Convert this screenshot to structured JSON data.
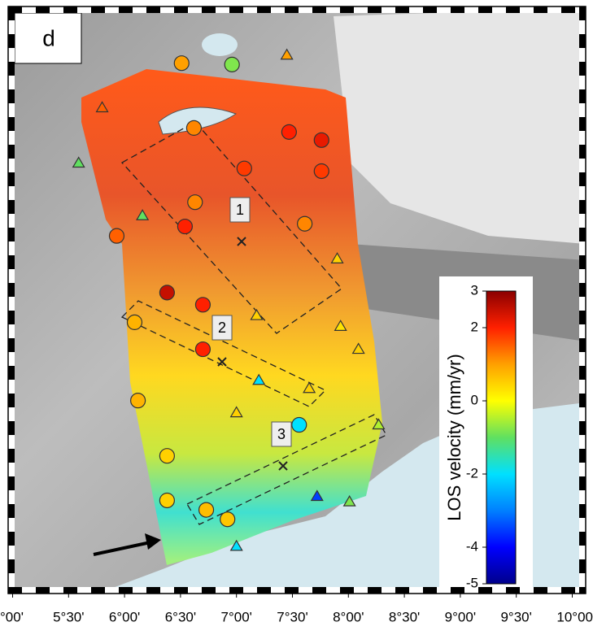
{
  "panel_label": "d",
  "profile_labels": [
    "1",
    "2",
    "3"
  ],
  "map": {
    "xlim": [
      4.96,
      10.12
    ],
    "ylim": [
      42.8,
      47.15
    ],
    "xticks": [
      {
        "value": 5,
        "label": "°00'"
      },
      {
        "value": 5.5,
        "label": "5°30'"
      },
      {
        "value": 6,
        "label": "6°00'"
      },
      {
        "value": 6.5,
        "label": "6°30'"
      },
      {
        "value": 7,
        "label": "7°00'"
      },
      {
        "value": 7.5,
        "label": "7°30'"
      },
      {
        "value": 8,
        "label": "8°00'"
      },
      {
        "value": 8.5,
        "label": "8°30'"
      },
      {
        "value": 9,
        "label": "9°00'"
      },
      {
        "value": 9.5,
        "label": "9°30'"
      },
      {
        "value": 10,
        "label": "10°00"
      }
    ]
  },
  "stations": {
    "lon": [
      6.51,
      6.96,
      7.45,
      5.8,
      6.62,
      7.47,
      7.76,
      7.07,
      7.76,
      6.63,
      6.54,
      7.61,
      6.16,
      5.59,
      5.93,
      6.38,
      6.7,
      7.18,
      7.93,
      6.09,
      6.7,
      7.2,
      7.65,
      6.12,
      7.56,
      8.27,
      6.38,
      6.38,
      6.92,
      7.72,
      8.01,
      7.0,
      8.09,
      7.9,
      7.0,
      6.73
    ],
    "lat": [
      46.73,
      46.72,
      46.79,
      46.4,
      46.25,
      46.22,
      46.16,
      45.95,
      45.93,
      45.7,
      45.52,
      45.54,
      45.6,
      45.99,
      45.45,
      45.03,
      44.94,
      44.86,
      44.78,
      44.81,
      44.61,
      44.38,
      44.32,
      44.23,
      44.05,
      44.05,
      43.82,
      43.49,
      43.35,
      43.52,
      43.48,
      43.15,
      44.61,
      45.28,
      44.14,
      43.42
    ],
    "values": [
      1.0,
      -0.8,
      1.0,
      1.5,
      1.2,
      2.0,
      2.2,
      1.8,
      1.8,
      1.2,
      2.0,
      1.2,
      -1.0,
      -1.0,
      1.5,
      2.5,
      2.0,
      0.5,
      0.3,
      0.8,
      2.0,
      -2.0,
      0.5,
      0.8,
      -2.0,
      -0.5,
      0.5,
      0.5,
      0.6,
      -3.5,
      -0.8,
      -2.0,
      0.5,
      0.5,
      0.5,
      0.7
    ],
    "markers": [
      "circle",
      "circle",
      "triangle",
      "triangle",
      "circle",
      "circle",
      "circle",
      "circle",
      "circle",
      "circle",
      "circle",
      "circle",
      "triangle",
      "triangle",
      "circle",
      "circle",
      "circle",
      "triangle",
      "triangle",
      "circle",
      "circle",
      "triangle",
      "triangle",
      "circle",
      "circle",
      "triangle",
      "circle",
      "circle",
      "circle",
      "triangle",
      "triangle",
      "triangle",
      "triangle",
      "triangle",
      "triangle",
      "circle"
    ]
  },
  "colorbar": {
    "label": "LOS velocity (mm/yr)",
    "lim": [
      -5,
      3
    ],
    "ticks": [
      3,
      2,
      0,
      -2,
      -4,
      -5
    ],
    "colors": [
      "#00008b",
      "#0000ff",
      "#0080ff",
      "#00e0ff",
      "#60e060",
      "#ffff00",
      "#ffa000",
      "#ff2000",
      "#8b0000"
    ]
  }
}
